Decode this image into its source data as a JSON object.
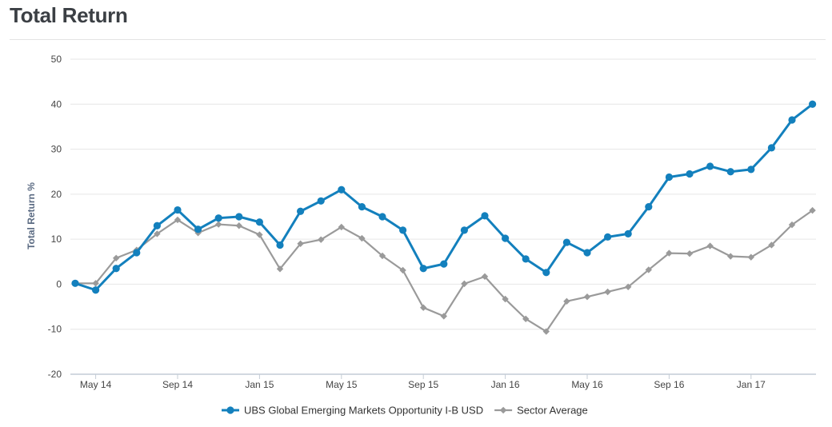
{
  "page": {
    "title": "Total Return"
  },
  "chart_data": {
    "type": "line",
    "title": "",
    "xlabel": "",
    "ylabel": "Total Return %",
    "ylim": [
      -20,
      50
    ],
    "yticks": [
      -20,
      -10,
      0,
      10,
      20,
      30,
      40,
      50
    ],
    "x_tick_labels": [
      {
        "label": "May 14",
        "index": 1
      },
      {
        "label": "Sep 14",
        "index": 5
      },
      {
        "label": "Jan 15",
        "index": 9
      },
      {
        "label": "May 15",
        "index": 13
      },
      {
        "label": "Sep 15",
        "index": 17
      },
      {
        "label": "Jan 16",
        "index": 21
      },
      {
        "label": "May 16",
        "index": 25
      },
      {
        "label": "Sep 16",
        "index": 29
      },
      {
        "label": "Jan 17",
        "index": 33
      }
    ],
    "grid": true,
    "legend_position": "bottom",
    "series": [
      {
        "name": "UBS Global Emerging Markets Opportunity I-B USD",
        "color": "#1380bd",
        "marker": "circle",
        "values": [
          0.2,
          -1.3,
          3.5,
          7,
          13,
          16.5,
          12.2,
          14.7,
          15,
          13.8,
          8.7,
          16.2,
          18.5,
          21,
          17.2,
          15,
          12,
          3.5,
          4.5,
          12,
          15.2,
          10.2,
          5.6,
          2.6,
          9.3,
          7,
          10.5,
          11.2,
          17.2,
          23.8,
          24.5,
          26.2,
          25,
          25.5,
          30.3,
          36.5,
          40
        ]
      },
      {
        "name": "Sector Average",
        "color": "#9a9a9a",
        "marker": "diamond",
        "values": [
          0.2,
          0.2,
          5.8,
          7.6,
          11.2,
          14.3,
          11.4,
          13.3,
          13,
          11,
          3.4,
          9,
          9.9,
          12.7,
          10.2,
          6.3,
          3.1,
          -5.2,
          -7.1,
          0.1,
          1.7,
          -3.3,
          -7.7,
          -10.5,
          -3.8,
          -2.8,
          -1.7,
          -0.6,
          3.2,
          6.9,
          6.8,
          8.5,
          6.2,
          6,
          8.7,
          13.2,
          16.4
        ]
      }
    ]
  }
}
